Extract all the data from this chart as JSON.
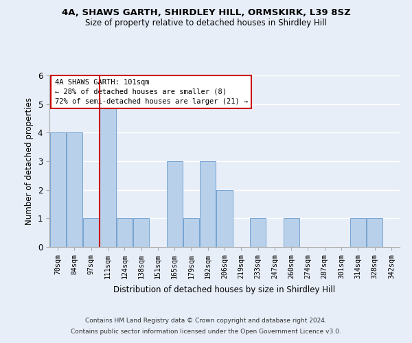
{
  "title1": "4A, SHAWS GARTH, SHIRDLEY HILL, ORMSKIRK, L39 8SZ",
  "title2": "Size of property relative to detached houses in Shirdley Hill",
  "xlabel": "Distribution of detached houses by size in Shirdley Hill",
  "ylabel": "Number of detached properties",
  "bin_labels": [
    "70sqm",
    "84sqm",
    "97sqm",
    "111sqm",
    "124sqm",
    "138sqm",
    "151sqm",
    "165sqm",
    "179sqm",
    "192sqm",
    "206sqm",
    "219sqm",
    "233sqm",
    "247sqm",
    "260sqm",
    "274sqm",
    "287sqm",
    "301sqm",
    "314sqm",
    "328sqm",
    "342sqm"
  ],
  "values": [
    4,
    4,
    1,
    5,
    1,
    1,
    0,
    3,
    1,
    3,
    2,
    0,
    1,
    0,
    1,
    0,
    0,
    0,
    1,
    1,
    0
  ],
  "bar_color": "#b8d0ea",
  "bar_edgecolor": "#6699cc",
  "vline_color": "#cc0000",
  "annotation_text": "4A SHAWS GARTH: 101sqm\n← 28% of detached houses are smaller (8)\n72% of semi-detached houses are larger (21) →",
  "annotation_box_color": "white",
  "annotation_box_edgecolor": "#cc0000",
  "footer1": "Contains HM Land Registry data © Crown copyright and database right 2024.",
  "footer2": "Contains public sector information licensed under the Open Government Licence v3.0.",
  "ylim": [
    0,
    6
  ],
  "background_color": "#e8eef8",
  "plot_background": "#e8eef8",
  "grid_color": "#ffffff"
}
